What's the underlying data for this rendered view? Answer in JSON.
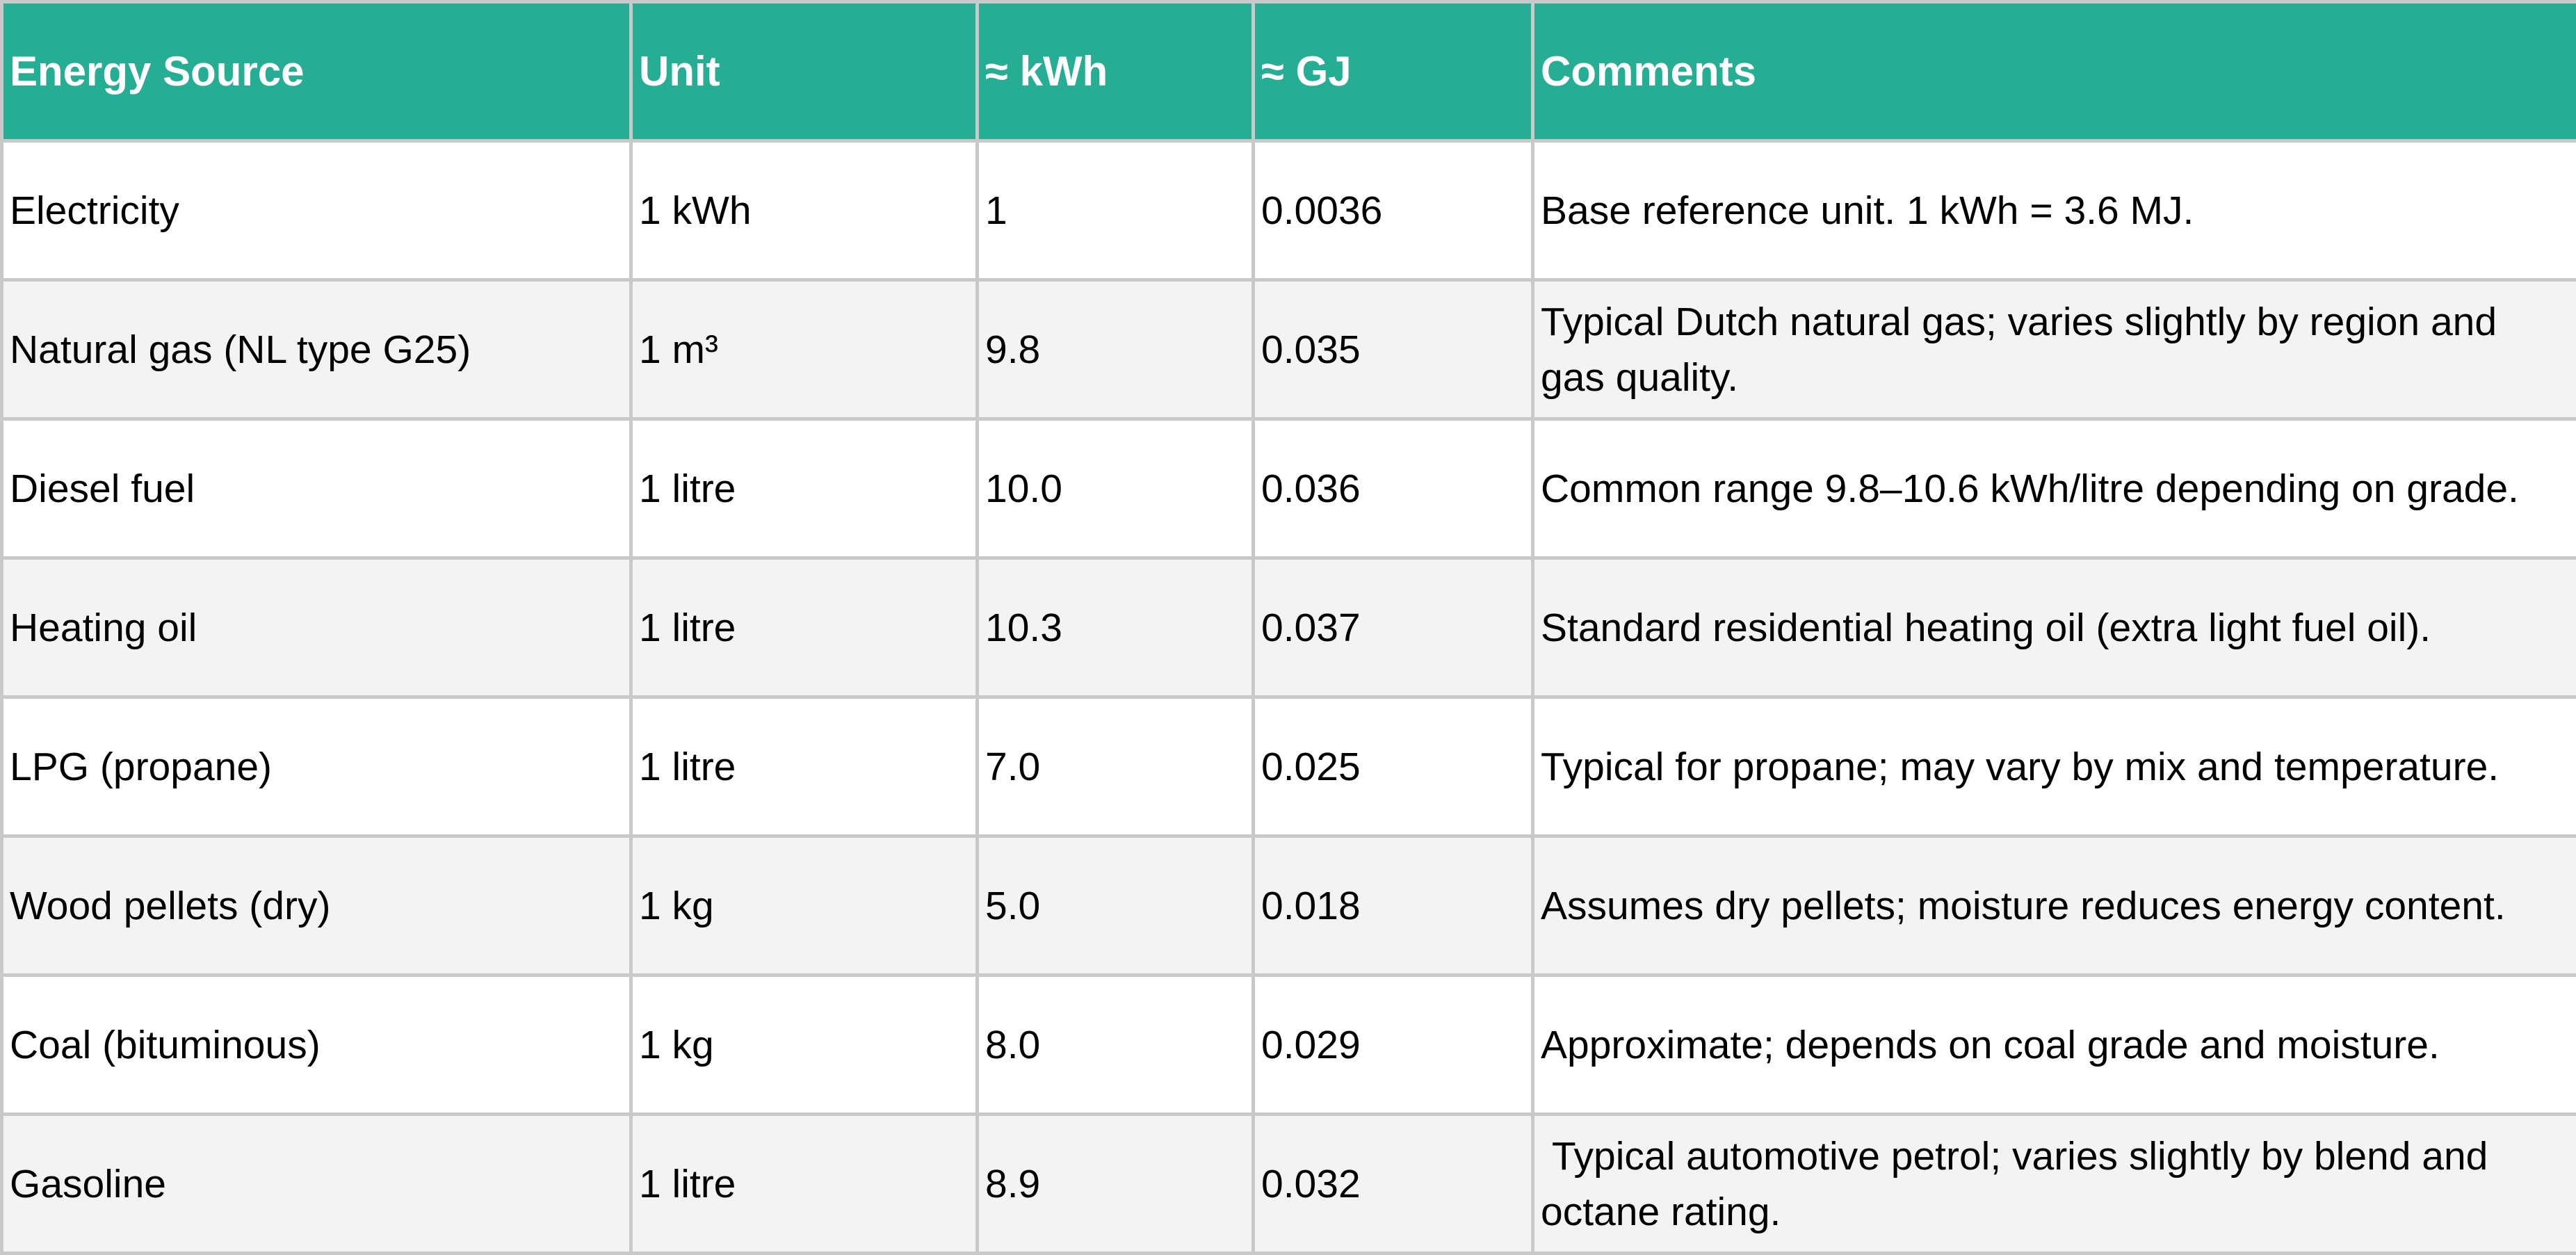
{
  "style": {
    "header_bg": "#26ae94",
    "header_text": "#ffffff",
    "grid_color": "#c9c9c9",
    "alt_row_bg": "#f3f3f3",
    "row_bg": "#ffffff",
    "body_text": "#000000"
  },
  "chart_data": {
    "type": "table",
    "columns": [
      "Energy Source",
      "Unit",
      "≈ kWh",
      "≈ GJ",
      "Comments"
    ],
    "rows": [
      [
        "Electricity",
        "1 kWh",
        "1",
        "0.0036",
        "Base reference unit. 1 kWh = 3.6 MJ."
      ],
      [
        "Natural gas (NL type G25)",
        "1 m³",
        "9.8",
        "0.035",
        "Typical Dutch natural gas; varies slightly by region and gas quality."
      ],
      [
        "Diesel fuel",
        "1 litre",
        "10.0",
        "0.036",
        "Common range 9.8–10.6 kWh/litre depending on grade."
      ],
      [
        "Heating oil",
        "1 litre",
        "10.3",
        "0.037",
        "Standard residential heating oil (extra light fuel oil)."
      ],
      [
        "LPG (propane)",
        "1 litre",
        "7.0",
        "0.025",
        "Typical for propane; may vary by mix and temperature."
      ],
      [
        "Wood pellets (dry)",
        "1 kg",
        "5.0",
        "0.018",
        "Assumes dry pellets; moisture reduces energy content."
      ],
      [
        "Coal (bituminous)",
        "1 kg",
        "8.0",
        "0.029",
        "Approximate; depends on coal grade and moisture."
      ],
      [
        "Gasoline",
        "1 litre",
        "8.9",
        "0.032",
        " Typical automotive petrol; varies slightly by blend and octane rating."
      ]
    ]
  }
}
